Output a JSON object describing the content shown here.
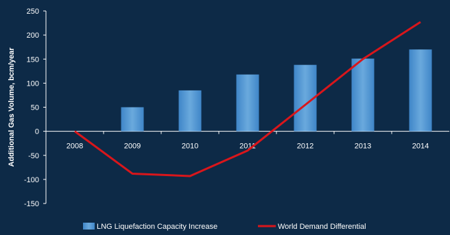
{
  "colors": {
    "background": "#0d2a47",
    "bar": "#3f86c8",
    "bar_top": "#6aa9dd",
    "line": "#d9161b",
    "axis": "#ffffff",
    "text": "#ffffff"
  },
  "chart_data": {
    "type": "bar",
    "title": "",
    "xlabel": "",
    "ylabel": "Additional Gas Volume,  bcm/year",
    "ylim": [
      -150,
      250
    ],
    "yticks": [
      250,
      200,
      150,
      100,
      50,
      0,
      -50,
      -100,
      -150
    ],
    "grid": false,
    "legend_position": "bottom",
    "categories": [
      "2008",
      "2009",
      "2010",
      "2011",
      "2012",
      "2013",
      "2014"
    ],
    "series": [
      {
        "name": "LNG Liquefaction Capacity Increase",
        "type": "bar",
        "values": [
          0,
          50,
          85,
          118,
          138,
          151,
          170
        ]
      },
      {
        "name": "World Demand Differential",
        "type": "line",
        "values": [
          0,
          -88,
          -93,
          -40,
          55,
          150,
          227
        ]
      }
    ]
  }
}
